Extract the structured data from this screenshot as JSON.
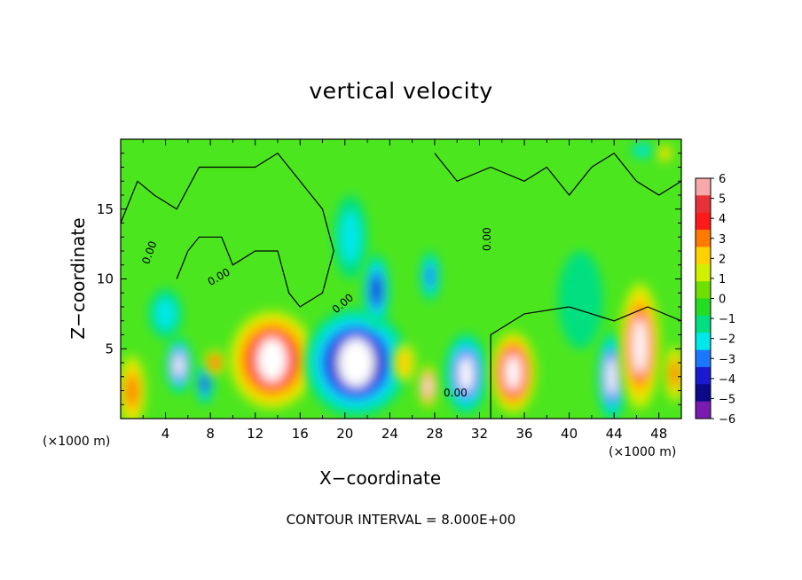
{
  "chart_data": {
    "type": "heatmap",
    "title": "vertical velocity",
    "xlabel": "X−coordinate",
    "ylabel": "Z−coordinate",
    "x_unit_left": "(×1000 m)",
    "x_unit_right": "(×1000 m)",
    "x_ticks": [
      "4",
      "8",
      "12",
      "16",
      "20",
      "24",
      "28",
      "32",
      "36",
      "40",
      "44",
      "48"
    ],
    "y_ticks": [
      "5",
      "10",
      "15"
    ],
    "xlim": [
      0,
      50
    ],
    "ylim": [
      0,
      20
    ],
    "colorbar": {
      "labels": [
        "6",
        "5",
        "4",
        "3",
        "2",
        "1",
        "0",
        "−1",
        "−2",
        "−3",
        "−4",
        "−5",
        "−6"
      ],
      "colors": [
        "#f7a8a8",
        "#e8323a",
        "#ff1a1a",
        "#ff7a00",
        "#ffd000",
        "#d0f000",
        "#6ee000",
        "#22dd22",
        "#00e080",
        "#00e8e8",
        "#1a78ff",
        "#1a1ad0",
        "#0a0a8a",
        "#7a1ab0"
      ]
    },
    "contour_labels": [
      "0.00",
      "0.00",
      "0.00",
      "0.00",
      "0.00"
    ],
    "contour_note": "CONTOUR INTERVAL = 8.000E+00",
    "background_color": "#4ce61e",
    "blobs": [
      {
        "x": 1.0,
        "y": 2.0,
        "rx": 1.2,
        "ry": 2.5,
        "v": 3
      },
      {
        "x": 5.2,
        "y": 3.8,
        "rx": 1.2,
        "ry": 2.0,
        "v": -5
      },
      {
        "x": 7.5,
        "y": 2.5,
        "rx": 0.8,
        "ry": 1.5,
        "v": -4
      },
      {
        "x": 8.4,
        "y": 4.0,
        "rx": 0.9,
        "ry": 0.9,
        "v": 4
      },
      {
        "x": 13.5,
        "y": 4.2,
        "rx": 3.8,
        "ry": 3.5,
        "v": 6
      },
      {
        "x": 21.0,
        "y": 4.0,
        "rx": 4.6,
        "ry": 3.9,
        "v": -6
      },
      {
        "x": 22.8,
        "y": 9.2,
        "rx": 1.2,
        "ry": 2.6,
        "v": -4
      },
      {
        "x": 20.5,
        "y": 13.0,
        "rx": 1.5,
        "ry": 3.0,
        "v": -2
      },
      {
        "x": 25.3,
        "y": 4.0,
        "rx": 1.0,
        "ry": 1.4,
        "v": 2
      },
      {
        "x": 27.4,
        "y": 2.3,
        "rx": 0.8,
        "ry": 1.5,
        "v": 5
      },
      {
        "x": 27.6,
        "y": 10.2,
        "rx": 0.9,
        "ry": 1.8,
        "v": -3
      },
      {
        "x": 30.8,
        "y": 3.2,
        "rx": 1.9,
        "ry": 2.9,
        "v": -5
      },
      {
        "x": 35.0,
        "y": 3.3,
        "rx": 2.0,
        "ry": 2.9,
        "v": 6
      },
      {
        "x": 41.0,
        "y": 8.5,
        "rx": 2.0,
        "ry": 3.5,
        "v": -1
      },
      {
        "x": 43.8,
        "y": 3.0,
        "rx": 1.3,
        "ry": 3.2,
        "v": -5
      },
      {
        "x": 46.3,
        "y": 5.2,
        "rx": 1.8,
        "ry": 4.5,
        "v": 5
      },
      {
        "x": 49.4,
        "y": 3.2,
        "rx": 0.9,
        "ry": 2.0,
        "v": 3
      },
      {
        "x": 4.0,
        "y": 7.5,
        "rx": 1.5,
        "ry": 1.8,
        "v": -2
      },
      {
        "x": 48.5,
        "y": 19.0,
        "rx": 0.7,
        "ry": 0.6,
        "v": 2
      },
      {
        "x": 46.5,
        "y": 19.2,
        "rx": 1.0,
        "ry": 0.6,
        "v": -2
      }
    ]
  }
}
